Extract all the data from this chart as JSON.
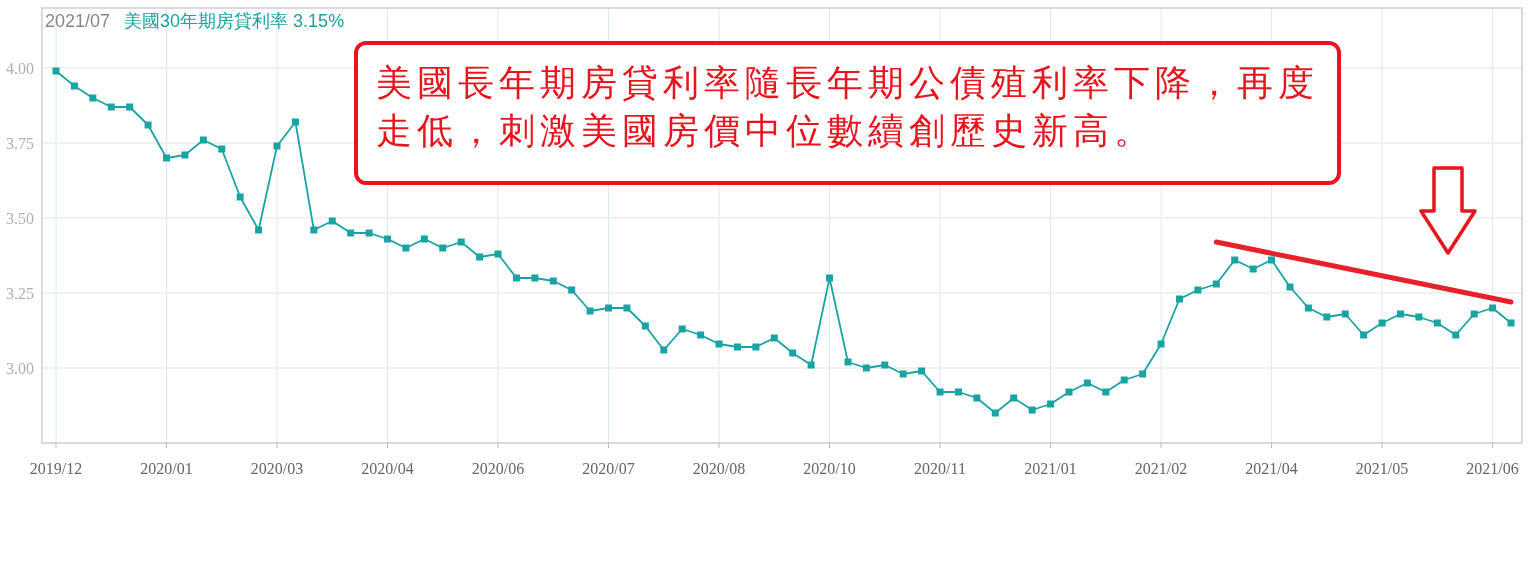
{
  "chart_data": {
    "type": "line",
    "title": "美國30年期房貸利率 3.15%",
    "subtitle": "2021/07",
    "categories": [
      "2019/12",
      null,
      null,
      null,
      null,
      null,
      "2020/01",
      null,
      null,
      null,
      null,
      null,
      "2020/03",
      null,
      null,
      null,
      null,
      null,
      "2020/04",
      null,
      null,
      null,
      null,
      null,
      "2020/06",
      null,
      null,
      null,
      null,
      null,
      "2020/07",
      null,
      null,
      null,
      null,
      null,
      "2020/08",
      null,
      null,
      null,
      null,
      null,
      "2020/10",
      null,
      null,
      null,
      null,
      null,
      "2020/11",
      null,
      null,
      null,
      null,
      null,
      "2021/01",
      null,
      null,
      null,
      null,
      null,
      "2021/02",
      null,
      null,
      null,
      null,
      null,
      "2021/04",
      null,
      null,
      null,
      null,
      null,
      "2021/05",
      null,
      null,
      null,
      null,
      null,
      "2021/06",
      null
    ],
    "series": [
      {
        "color": "#1aa3a3",
        "values": [
          3.99,
          3.94,
          3.9,
          3.87,
          3.87,
          3.81,
          3.7,
          3.71,
          3.76,
          3.73,
          3.57,
          3.46,
          3.74,
          3.82,
          3.46,
          3.49,
          3.45,
          3.45,
          3.43,
          3.4,
          3.43,
          3.4,
          3.42,
          3.37,
          3.38,
          3.3,
          3.3,
          3.29,
          3.26,
          3.19,
          3.2,
          3.2,
          3.14,
          3.06,
          3.13,
          3.11,
          3.08,
          3.07,
          3.07,
          3.1,
          3.05,
          3.01,
          3.3,
          3.02,
          3.0,
          3.01,
          2.98,
          2.99,
          2.92,
          2.92,
          2.9,
          2.85,
          2.9,
          2.86,
          2.88,
          2.92,
          2.95,
          2.92,
          2.96,
          2.98,
          3.08,
          3.23,
          3.26,
          3.28,
          3.36,
          3.33,
          3.36,
          3.27,
          3.2,
          3.17,
          3.18,
          3.11,
          3.15,
          3.18,
          3.17,
          3.15,
          3.11,
          3.18,
          3.2,
          3.15
        ]
      },
      {
        "type": "line",
        "color": "#e8202a",
        "marker": "none",
        "values": [
          null,
          null,
          null,
          null,
          null,
          null,
          null,
          null,
          null,
          null,
          null,
          null,
          null,
          null,
          null,
          null,
          null,
          null,
          null,
          null,
          null,
          null,
          null,
          null,
          null,
          null,
          null,
          null,
          null,
          null,
          null,
          null,
          null,
          null,
          null,
          null,
          null,
          null,
          null,
          null,
          null,
          null,
          null,
          null,
          null,
          null,
          null,
          null,
          null,
          null,
          null,
          null,
          null,
          null,
          null,
          null,
          null,
          null,
          null,
          null,
          null,
          null,
          null,
          3.42,
          null,
          null,
          null,
          null,
          null,
          null,
          null,
          null,
          null,
          null,
          null,
          null,
          null,
          null,
          null,
          3.22
        ]
      }
    ],
    "ylim": [
      2.75,
      4.2
    ],
    "yticks": [
      {
        "value": 3,
        "label": "3.00"
      },
      {
        "value": 3.25,
        "label": "3.25"
      },
      {
        "value": 3.5,
        "label": "3.50"
      },
      {
        "value": 3.75,
        "label": "3.75"
      },
      {
        "value": 4,
        "label": "4.00"
      }
    ],
    "grid": true,
    "marker": "square",
    "annotations": [
      "美國長年期房貸利率隨長年期公債殖利率下降，再度走低，刺激美國房價中位數續創歷史新高。"
    ]
  }
}
